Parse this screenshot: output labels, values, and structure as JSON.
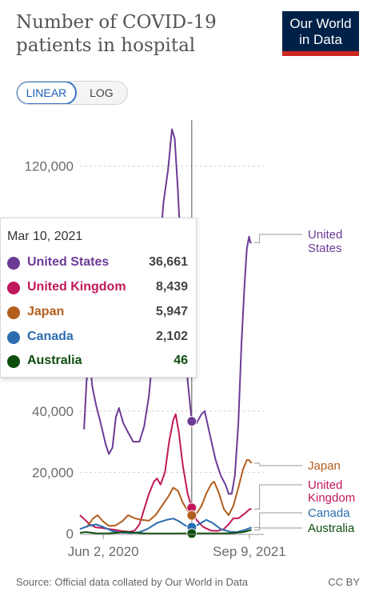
{
  "header": {
    "title": "Number of COVID-19 patients in hospital",
    "logo_line1": "Our World",
    "logo_line2": "in Data"
  },
  "scale_toggle": {
    "linear_label": "LINEAR",
    "log_label": "LOG",
    "selected": "LINEAR"
  },
  "tooltip": {
    "date": "Mar 10, 2021",
    "rows": [
      {
        "name": "United States",
        "value": "36,661",
        "color": "#6c3b96"
      },
      {
        "name": "United Kingdom",
        "value": "8,439",
        "color": "#c2185b"
      },
      {
        "name": "Japan",
        "value": "5,947",
        "color": "#b35e1e"
      },
      {
        "name": "Canada",
        "value": "2,102",
        "color": "#2b6cb0"
      },
      {
        "name": "Australia",
        "value": "46",
        "color": "#0e4d0e"
      }
    ]
  },
  "footer": {
    "source": "Source: Official data collated by Our World in Data",
    "license": "CC BY"
  },
  "chart_data": {
    "type": "line",
    "title": "Number of COVID-19 patients in hospital",
    "xlabel": "",
    "ylabel": "",
    "ylim": [
      0,
      140000
    ],
    "yticks": [
      0,
      20000,
      40000,
      120000
    ],
    "ytick_labels": [
      "0",
      "20,000",
      "40,000",
      "120,000"
    ],
    "x_range": [
      "2020-03-20",
      "2021-10-25"
    ],
    "xtick_labels": [
      {
        "date": "2020-06-02",
        "label": "Jun 2, 2020"
      },
      {
        "date": "2021-09-09",
        "label": "Sep 9, 2021"
      }
    ],
    "grid": "horizontal dashed",
    "hover_date": "2021-03-10",
    "series": [
      {
        "name": "United States",
        "end_label": [
          "United",
          "States"
        ],
        "color": "#6c3b96",
        "points": [
          [
            "2020-04-02",
            34000
          ],
          [
            "2020-04-10",
            50000
          ],
          [
            "2020-04-20",
            57000
          ],
          [
            "2020-04-28",
            48000
          ],
          [
            "2020-05-10",
            42000
          ],
          [
            "2020-05-25",
            36000
          ],
          [
            "2020-06-10",
            29000
          ],
          [
            "2020-06-20",
            26000
          ],
          [
            "2020-07-01",
            28000
          ],
          [
            "2020-07-12",
            38000
          ],
          [
            "2020-07-22",
            41000
          ],
          [
            "2020-08-05",
            36000
          ],
          [
            "2020-08-20",
            33000
          ],
          [
            "2020-09-05",
            30000
          ],
          [
            "2020-09-25",
            30000
          ],
          [
            "2020-10-10",
            35000
          ],
          [
            "2020-10-25",
            45000
          ],
          [
            "2020-11-10",
            63000
          ],
          [
            "2020-11-25",
            88000
          ],
          [
            "2020-12-10",
            108000
          ],
          [
            "2020-12-25",
            119000
          ],
          [
            "2021-01-06",
            132000
          ],
          [
            "2021-01-15",
            129000
          ],
          [
            "2021-01-25",
            112000
          ],
          [
            "2021-02-05",
            89000
          ],
          [
            "2021-02-15",
            68000
          ],
          [
            "2021-02-25",
            50000
          ],
          [
            "2021-03-10",
            36661
          ],
          [
            "2021-03-25",
            36000
          ],
          [
            "2021-04-10",
            39000
          ],
          [
            "2021-04-20",
            40000
          ],
          [
            "2021-05-05",
            33000
          ],
          [
            "2021-05-25",
            24000
          ],
          [
            "2021-06-10",
            19000
          ],
          [
            "2021-06-25",
            16000
          ],
          [
            "2021-07-05",
            13000
          ],
          [
            "2021-07-15",
            13000
          ],
          [
            "2021-07-25",
            19000
          ],
          [
            "2021-08-05",
            36000
          ],
          [
            "2021-08-15",
            62000
          ],
          [
            "2021-08-25",
            82000
          ],
          [
            "2021-09-01",
            93000
          ],
          [
            "2021-09-08",
            97000
          ],
          [
            "2021-09-12",
            95000
          ],
          [
            "2021-09-16",
            95000
          ]
        ]
      },
      {
        "name": "United Kingdom",
        "end_label": [
          "United",
          "Kingdom"
        ],
        "color": "#c2185b",
        "points": [
          [
            "2020-03-20",
            6000
          ],
          [
            "2020-04-05",
            4500
          ],
          [
            "2020-04-20",
            3000
          ],
          [
            "2020-05-10",
            2000
          ],
          [
            "2020-06-01",
            1800
          ],
          [
            "2020-06-20",
            1500
          ],
          [
            "2020-07-10",
            1200
          ],
          [
            "2020-08-01",
            800
          ],
          [
            "2020-08-25",
            600
          ],
          [
            "2020-09-10",
            1000
          ],
          [
            "2020-09-25",
            3000
          ],
          [
            "2020-10-10",
            8000
          ],
          [
            "2020-10-25",
            13000
          ],
          [
            "2020-11-10",
            17000
          ],
          [
            "2020-11-20",
            18000
          ],
          [
            "2020-12-01",
            16000
          ],
          [
            "2020-12-15",
            20000
          ],
          [
            "2020-12-28",
            30000
          ],
          [
            "2021-01-10",
            37000
          ],
          [
            "2021-01-18",
            39000
          ],
          [
            "2021-01-28",
            33000
          ],
          [
            "2021-02-10",
            22000
          ],
          [
            "2021-02-25",
            13000
          ],
          [
            "2021-03-10",
            8439
          ],
          [
            "2021-03-25",
            4500
          ],
          [
            "2021-04-15",
            2200
          ],
          [
            "2021-05-10",
            1000
          ],
          [
            "2021-06-01",
            900
          ],
          [
            "2021-06-20",
            1500
          ],
          [
            "2021-07-05",
            3000
          ],
          [
            "2021-07-20",
            5000
          ],
          [
            "2021-08-05",
            5000
          ],
          [
            "2021-08-25",
            6500
          ],
          [
            "2021-09-10",
            8000
          ],
          [
            "2021-09-16",
            8000
          ]
        ]
      },
      {
        "name": "Japan",
        "end_label": [
          "Japan"
        ],
        "color": "#b35e1e",
        "points": [
          [
            "2020-04-10",
            2000
          ],
          [
            "2020-05-01",
            5000
          ],
          [
            "2020-05-15",
            6000
          ],
          [
            "2020-06-01",
            4000
          ],
          [
            "2020-06-20",
            2500
          ],
          [
            "2020-07-10",
            2600
          ],
          [
            "2020-08-01",
            4000
          ],
          [
            "2020-08-20",
            6000
          ],
          [
            "2020-09-10",
            5000
          ],
          [
            "2020-10-01",
            4500
          ],
          [
            "2020-10-25",
            4200
          ],
          [
            "2020-11-15",
            6000
          ],
          [
            "2020-12-05",
            9000
          ],
          [
            "2020-12-25",
            12000
          ],
          [
            "2021-01-10",
            15000
          ],
          [
            "2021-01-25",
            14000
          ],
          [
            "2021-02-10",
            10000
          ],
          [
            "2021-02-28",
            7000
          ],
          [
            "2021-03-10",
            5947
          ],
          [
            "2021-03-25",
            6500
          ],
          [
            "2021-04-10",
            9000
          ],
          [
            "2021-04-25",
            13000
          ],
          [
            "2021-05-10",
            16000
          ],
          [
            "2021-05-20",
            17000
          ],
          [
            "2021-06-05",
            13000
          ],
          [
            "2021-06-20",
            8000
          ],
          [
            "2021-07-05",
            6000
          ],
          [
            "2021-07-20",
            9000
          ],
          [
            "2021-08-05",
            15000
          ],
          [
            "2021-08-20",
            21000
          ],
          [
            "2021-09-01",
            24000
          ],
          [
            "2021-09-08",
            24000
          ],
          [
            "2021-09-16",
            23000
          ]
        ]
      },
      {
        "name": "Canada",
        "end_label": [
          "Canada"
        ],
        "color": "#2b6cb0",
        "points": [
          [
            "2020-03-20",
            1500
          ],
          [
            "2020-04-15",
            2500
          ],
          [
            "2020-05-10",
            3000
          ],
          [
            "2020-06-01",
            2200
          ],
          [
            "2020-07-01",
            800
          ],
          [
            "2020-08-01",
            300
          ],
          [
            "2020-09-01",
            200
          ],
          [
            "2020-09-25",
            500
          ],
          [
            "2020-10-20",
            1500
          ],
          [
            "2020-11-20",
            3500
          ],
          [
            "2020-12-20",
            4500
          ],
          [
            "2021-01-10",
            4900
          ],
          [
            "2021-01-25",
            4200
          ],
          [
            "2021-02-20",
            2500
          ],
          [
            "2021-03-10",
            2102
          ],
          [
            "2021-04-01",
            3000
          ],
          [
            "2021-04-25",
            4500
          ],
          [
            "2021-05-15",
            3500
          ],
          [
            "2021-06-10",
            1500
          ],
          [
            "2021-07-10",
            600
          ],
          [
            "2021-08-01",
            500
          ],
          [
            "2021-08-25",
            1200
          ],
          [
            "2021-09-16",
            2000
          ]
        ]
      },
      {
        "name": "Australia",
        "end_label": [
          "Australia"
        ],
        "color": "#0e4d0e",
        "points": [
          [
            "2020-03-20",
            300
          ],
          [
            "2020-04-10",
            500
          ],
          [
            "2020-05-10",
            100
          ],
          [
            "2020-06-15",
            50
          ],
          [
            "2020-07-20",
            300
          ],
          [
            "2020-08-10",
            600
          ],
          [
            "2020-09-10",
            300
          ],
          [
            "2020-10-15",
            50
          ],
          [
            "2021-01-01",
            30
          ],
          [
            "2021-03-10",
            46
          ],
          [
            "2021-06-15",
            50
          ],
          [
            "2021-07-20",
            150
          ],
          [
            "2021-08-20",
            500
          ],
          [
            "2021-09-16",
            1200
          ]
        ]
      }
    ]
  }
}
